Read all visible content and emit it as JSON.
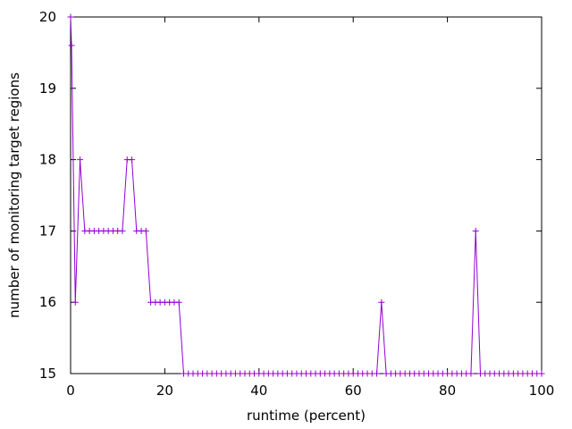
{
  "chart_data": {
    "type": "line",
    "title": "",
    "xlabel": "runtime (percent)",
    "ylabel": "number of monitoring target regions",
    "xlim": [
      0,
      100
    ],
    "ylim": [
      15,
      20
    ],
    "xticks": [
      0,
      20,
      40,
      60,
      80,
      100
    ],
    "yticks": [
      15,
      16,
      17,
      18,
      19,
      20
    ],
    "xtick_labels": [
      "0",
      "20",
      "40",
      "60",
      "80",
      "100"
    ],
    "ytick_labels": [
      "15",
      "16",
      "17",
      "18",
      "19",
      "20"
    ],
    "grid": false,
    "legend": "none",
    "color": "#9400d3",
    "marker": "plus",
    "series": [
      {
        "x": [
          0,
          0.2,
          1,
          2,
          3,
          4,
          5,
          6,
          7,
          8,
          9,
          10,
          11,
          12,
          13,
          14,
          15,
          16,
          17,
          18,
          19,
          20,
          21,
          22,
          23,
          24,
          25,
          26,
          27,
          28,
          29,
          30,
          31,
          32,
          33,
          34,
          35,
          36,
          37,
          38,
          39,
          40,
          41,
          42,
          43,
          44,
          45,
          46,
          47,
          48,
          49,
          50,
          51,
          52,
          53,
          54,
          55,
          56,
          57,
          58,
          59,
          60,
          61,
          62,
          63,
          64,
          65,
          66,
          67,
          68,
          69,
          70,
          71,
          72,
          73,
          74,
          75,
          76,
          77,
          78,
          79,
          80,
          81,
          82,
          83,
          84,
          85,
          86,
          87,
          88,
          89,
          90,
          91,
          92,
          93,
          94,
          95,
          96,
          97,
          98,
          99,
          100
        ],
        "y": [
          20,
          19.6,
          16,
          18,
          17,
          17,
          17,
          17,
          17,
          17,
          17,
          17,
          17,
          18,
          18,
          17,
          17,
          17,
          16,
          16,
          16,
          16,
          16,
          16,
          16,
          15,
          15,
          15,
          15,
          15,
          15,
          15,
          15,
          15,
          15,
          15,
          15,
          15,
          15,
          15,
          15,
          15,
          15,
          15,
          15,
          15,
          15,
          15,
          15,
          15,
          15,
          15,
          15,
          15,
          15,
          15,
          15,
          15,
          15,
          15,
          15,
          15,
          15,
          15,
          15,
          15,
          15,
          16,
          15,
          15,
          15,
          15,
          15,
          15,
          15,
          15,
          15,
          15,
          15,
          15,
          15,
          15,
          15,
          15,
          15,
          15,
          15,
          17,
          15,
          15,
          15,
          15,
          15,
          15,
          15,
          15,
          15,
          15,
          15,
          15,
          15,
          15
        ]
      }
    ]
  }
}
